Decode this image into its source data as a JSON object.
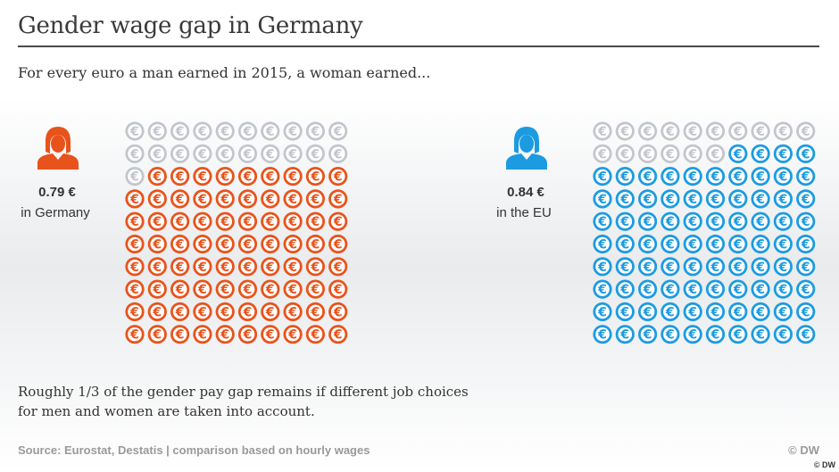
{
  "title": "Gender wage gap in Germany",
  "subtitle": "For every euro a man earned in 2015, a woman earned...",
  "colors": {
    "germany": "#e8531b",
    "eu": "#1c9be0",
    "inactive": "#c2c6cc"
  },
  "icon": "euro-coin-icon",
  "chart_data": [
    {
      "type": "waffle",
      "value_label": "0.79 €",
      "place_label": "in Germany",
      "value": 0.79,
      "total_cells": 100,
      "filled_cells": 79,
      "color": "#e8531b",
      "person_icon": "woman-icon"
    },
    {
      "type": "waffle",
      "value_label": "0.84 €",
      "place_label": "in the EU",
      "value": 0.84,
      "total_cells": 100,
      "filled_cells": 84,
      "color": "#1c9be0",
      "person_icon": "woman-icon"
    }
  ],
  "note_lines": [
    "Roughly 1/3 of the gender pay gap remains if different job choices",
    "for men and women are taken into account."
  ],
  "source": "Source: Eurostat, Destatis | comparison based on hourly wages",
  "copyright": "© DW",
  "corner_badge": "© DW"
}
